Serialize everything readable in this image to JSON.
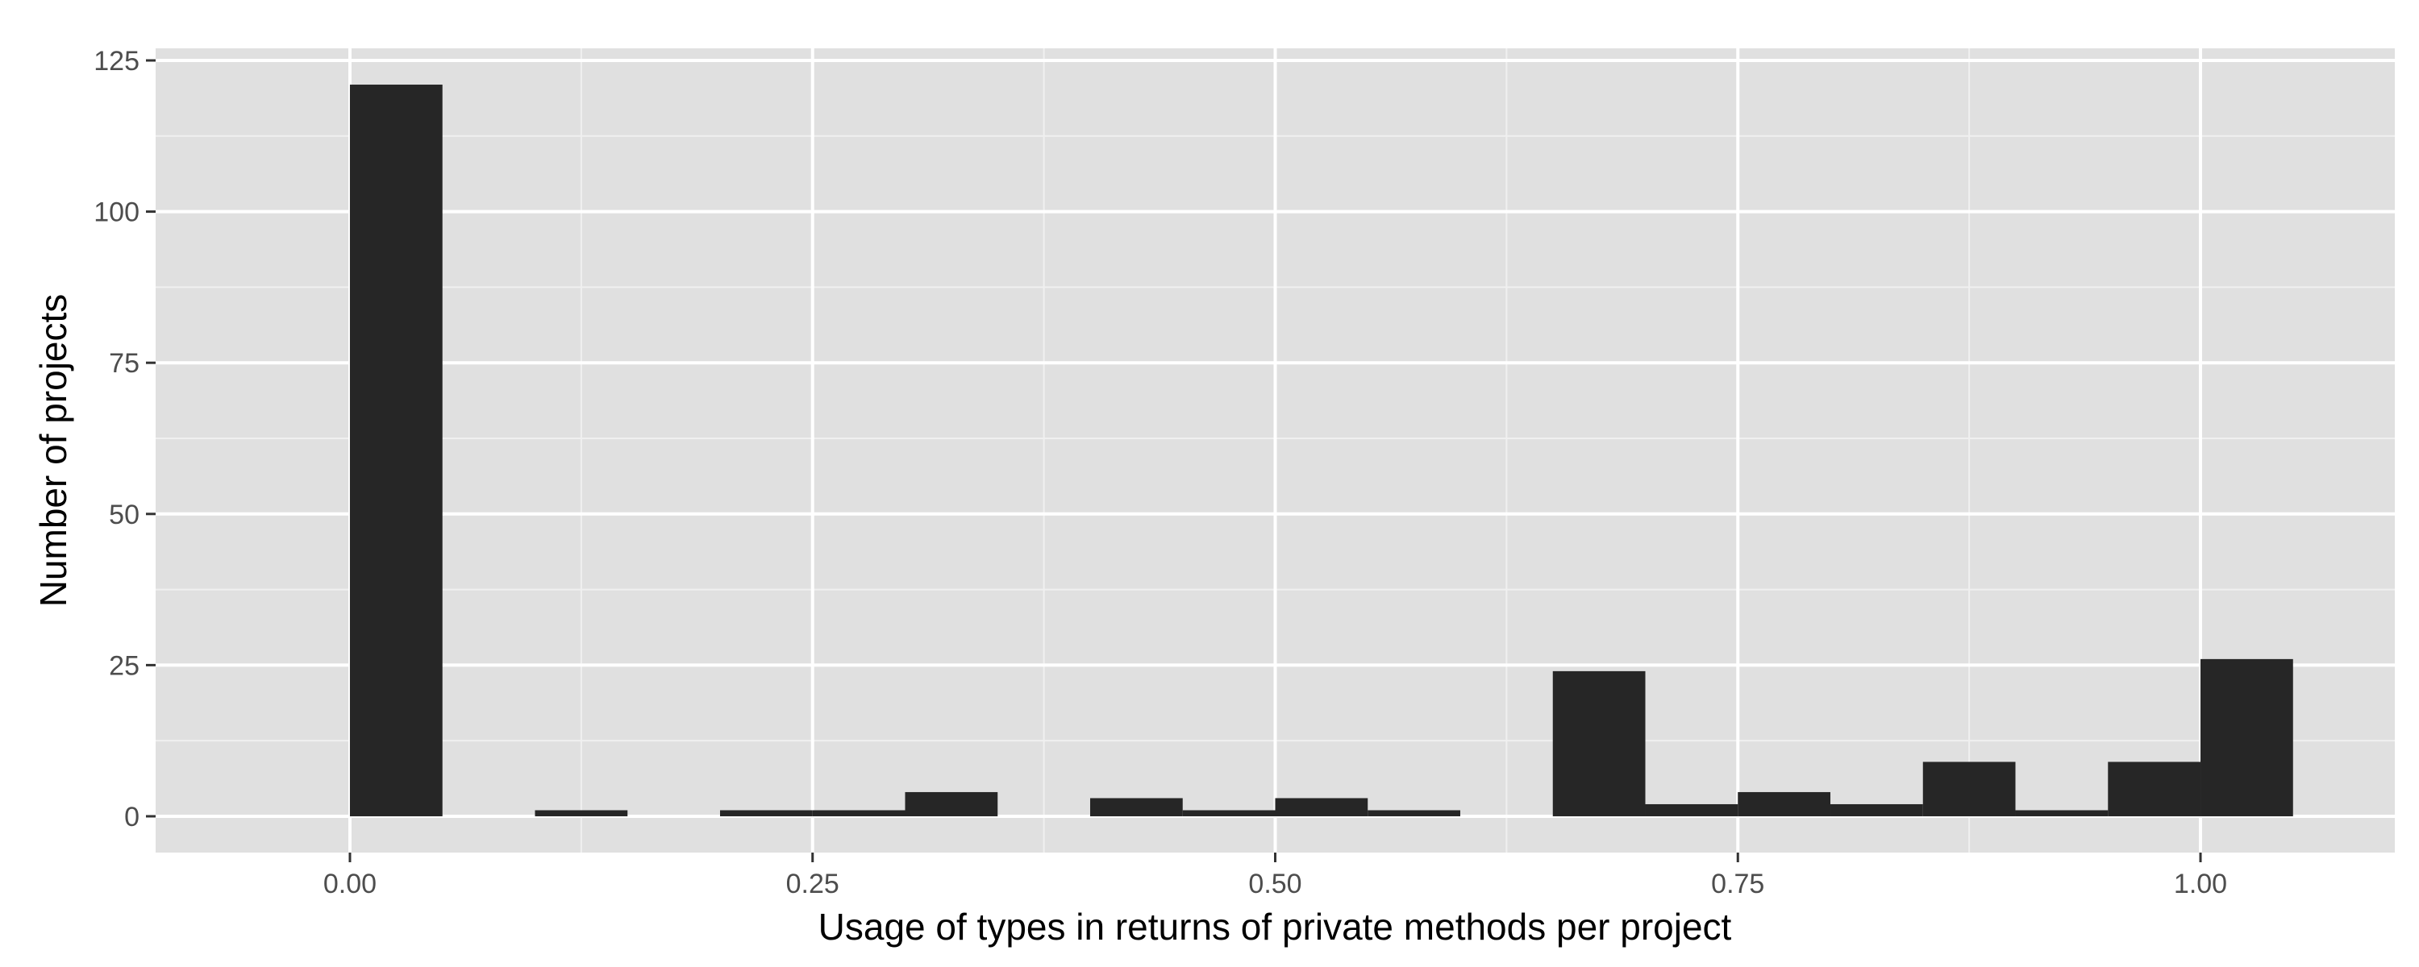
{
  "chart_data": {
    "type": "bar",
    "title": "",
    "xlabel": "Usage of types in returns of private methods per project",
    "ylabel": "Number of projects",
    "bin_width": 0.05,
    "bins": [
      {
        "start": 0.0,
        "count": 121
      },
      {
        "start": 0.05,
        "count": 0
      },
      {
        "start": 0.1,
        "count": 1
      },
      {
        "start": 0.15,
        "count": 0
      },
      {
        "start": 0.2,
        "count": 1
      },
      {
        "start": 0.25,
        "count": 1
      },
      {
        "start": 0.3,
        "count": 4
      },
      {
        "start": 0.35,
        "count": 0
      },
      {
        "start": 0.4,
        "count": 3
      },
      {
        "start": 0.45,
        "count": 1
      },
      {
        "start": 0.5,
        "count": 3
      },
      {
        "start": 0.55,
        "count": 1
      },
      {
        "start": 0.6,
        "count": 0
      },
      {
        "start": 0.65,
        "count": 24
      },
      {
        "start": 0.7,
        "count": 2
      },
      {
        "start": 0.75,
        "count": 4
      },
      {
        "start": 0.8,
        "count": 2
      },
      {
        "start": 0.85,
        "count": 9
      },
      {
        "start": 0.9,
        "count": 1
      },
      {
        "start": 0.95,
        "count": 9
      },
      {
        "start": 1.0,
        "count": 26
      }
    ],
    "xlim": [
      -0.105,
      1.105
    ],
    "ylim": [
      -6,
      127
    ],
    "x_ticks": [
      0.0,
      0.25,
      0.5,
      0.75,
      1.0
    ],
    "x_tick_labels": [
      "0.00",
      "0.25",
      "0.50",
      "0.75",
      "1.00"
    ],
    "y_ticks": [
      0,
      25,
      50,
      75,
      100,
      125
    ],
    "y_tick_labels": [
      "0",
      "25",
      "50",
      "75",
      "100",
      "125"
    ],
    "grid": true,
    "colors": {
      "bar": "#262626",
      "panel": "#e0e0e0",
      "grid_major": "#ffffff",
      "grid_minor": "#f0f0f0"
    }
  }
}
